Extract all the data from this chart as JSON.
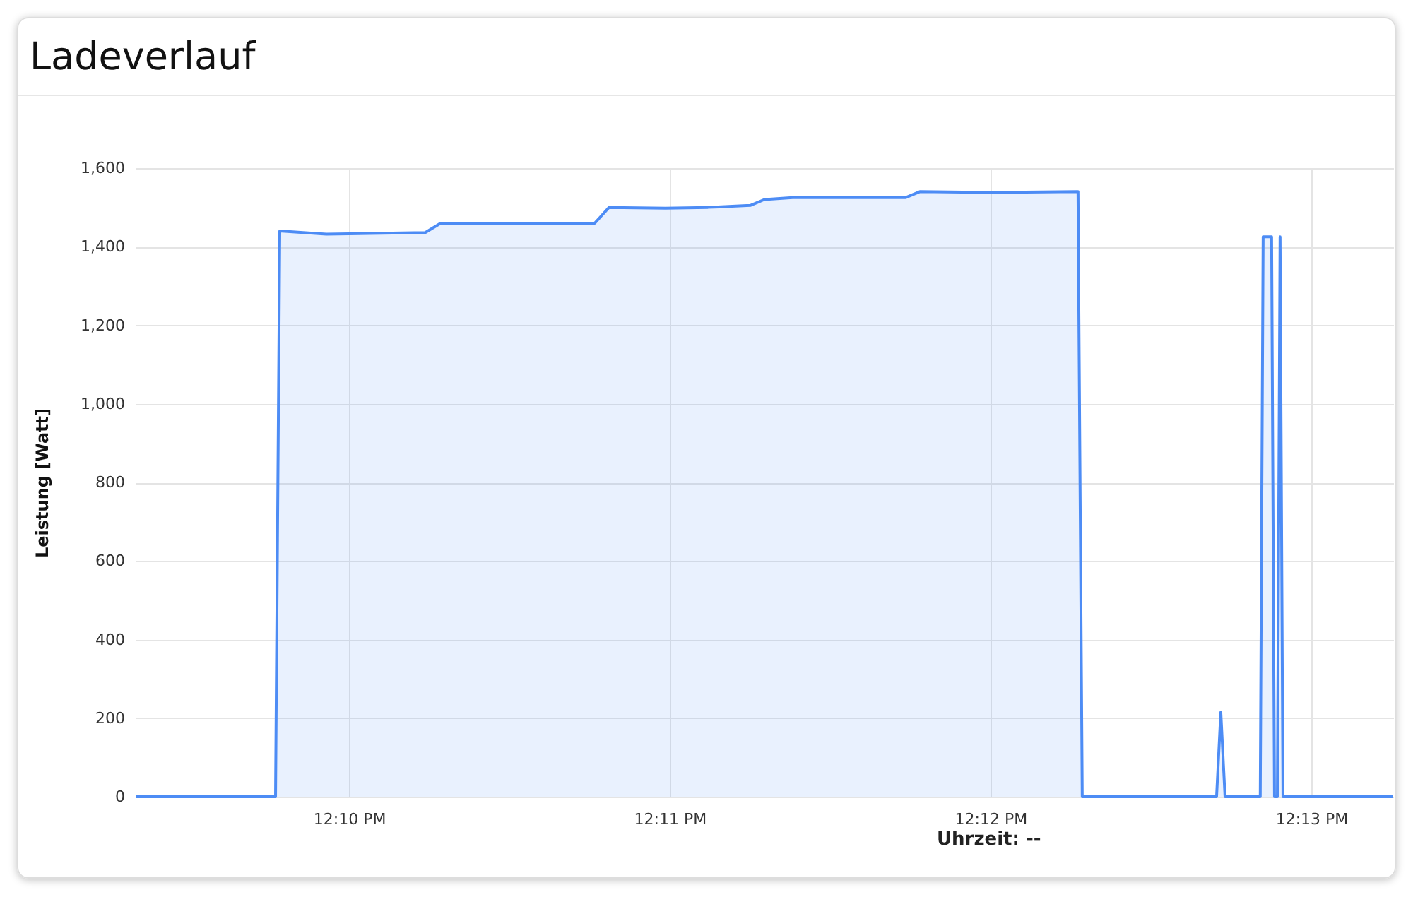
{
  "chart_data": {
    "type": "area",
    "title": "Ladeverlauf",
    "ylabel": "Leistung [Watt]",
    "x": [
      12.15558,
      12.16285,
      12.16307,
      12.16549,
      12.17063,
      12.17137,
      12.17944,
      12.17981,
      12.18018,
      12.18311,
      12.18532,
      12.18752,
      12.18825,
      12.18972,
      12.1956,
      12.19633,
      12.2,
      12.20455,
      12.20477,
      12.21175,
      12.21197,
      12.21219,
      12.21402,
      12.21417,
      12.21461,
      12.21476,
      12.21491,
      12.21505,
      12.2152,
      12.22093
    ],
    "series": [
      {
        "color": "#4d8cf5",
        "values": [
          0,
          0,
          1440,
          1432,
          1436,
          1458,
          1460,
          1480,
          1500,
          1498,
          1500,
          1505,
          1520,
          1525,
          1525,
          1540,
          1538,
          1540,
          0,
          0,
          215,
          0,
          0,
          1425,
          1425,
          0,
          0,
          1425,
          0,
          0
        ]
      }
    ],
    "xlim": [
      12.15558,
      12.22093
    ],
    "xticks": [
      {
        "value": 12.16667,
        "label": "12:10 PM"
      },
      {
        "value": 12.18333,
        "label": "12:11 PM"
      },
      {
        "value": 12.2,
        "label": "12:12 PM"
      },
      {
        "value": 12.21667,
        "label": "12:13 PM"
      }
    ],
    "ylim": [
      0,
      1600
    ],
    "yticks": [
      0,
      200,
      400,
      600,
      800,
      {
        "value": 1000,
        "label": "1,000"
      },
      {
        "value": 1200,
        "label": "1,200"
      },
      {
        "value": 1400,
        "label": "1,400"
      },
      {
        "value": 1600,
        "label": "1,600"
      }
    ],
    "grid": true,
    "annotations": [
      "Uhrzeit: --"
    ]
  }
}
